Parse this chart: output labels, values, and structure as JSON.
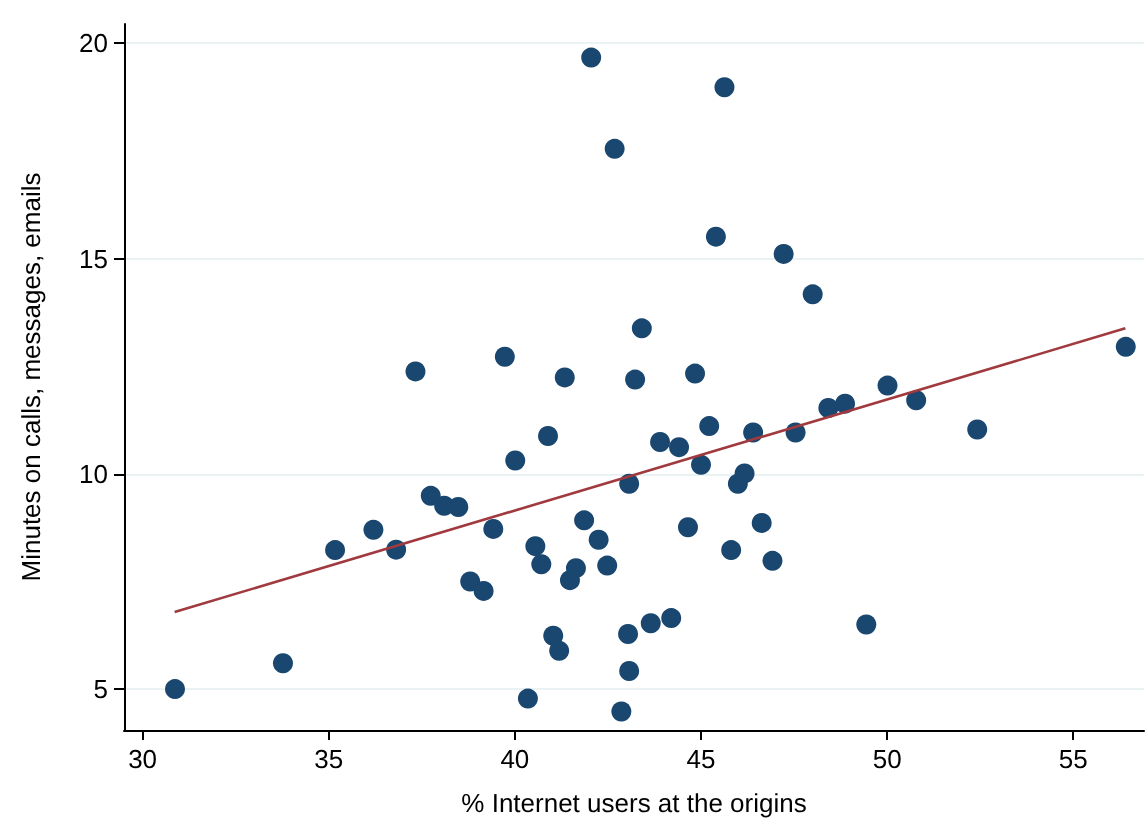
{
  "chart_data": {
    "type": "scatter",
    "xlabel": "% Internet users at the origins",
    "ylabel": "Minutes on calls, messages, emails",
    "xlim": [
      29.5,
      56.9
    ],
    "ylim": [
      4.05,
      20.45
    ],
    "xticks": [
      30,
      35,
      40,
      45,
      50,
      55
    ],
    "yticks": [
      5,
      10,
      15,
      20
    ],
    "grid": "y",
    "marker": "circle",
    "series": [
      {
        "color": "#1a476f",
        "x": [
          30.87,
          33.77,
          35.17,
          36.2,
          36.81,
          37.74,
          38.1,
          38.48,
          39.42,
          38.8,
          39.16,
          40.01,
          40.89,
          40.55,
          40.71,
          41.86,
          42.25,
          42.48,
          41.64,
          41.48,
          41.03,
          41.19,
          40.35,
          42.86,
          43.04,
          43.07,
          43.07,
          43.65,
          44.2,
          43.9,
          44.41,
          45.22,
          45.0,
          44.65,
          45.99,
          46.17,
          45.81,
          46.63,
          46.92,
          46.4,
          47.54,
          49.44,
          52.42,
          48.42,
          48.87,
          50.78,
          42.68,
          42.05,
          45.63,
          45.4,
          47.22,
          48.0,
          43.41,
          43.23,
          44.84,
          50.01,
          56.41,
          37.33,
          39.73,
          41.34
        ],
        "values": [
          5.0,
          5.6,
          8.23,
          8.7,
          8.24,
          9.49,
          9.26,
          9.23,
          8.72,
          7.5,
          7.28,
          10.31,
          10.88,
          8.32,
          7.9,
          8.92,
          8.47,
          7.87,
          7.81,
          7.53,
          6.24,
          5.89,
          4.78,
          4.48,
          6.28,
          5.42,
          9.77,
          6.53,
          6.65,
          10.74,
          10.62,
          11.11,
          10.21,
          8.76,
          9.77,
          10.01,
          8.23,
          8.86,
          7.98,
          10.96,
          10.96,
          6.5,
          11.03,
          11.53,
          11.63,
          11.71,
          17.55,
          19.67,
          18.98,
          15.51,
          15.11,
          14.17,
          13.38,
          12.19,
          12.33,
          12.05,
          12.95,
          12.38,
          12.72,
          12.24
        ]
      },
      {
        "type": "line",
        "color": "#a03a3f",
        "marker": "none",
        "x": [
          30.86,
          56.4
        ],
        "values": [
          6.79,
          13.38
        ]
      }
    ]
  }
}
